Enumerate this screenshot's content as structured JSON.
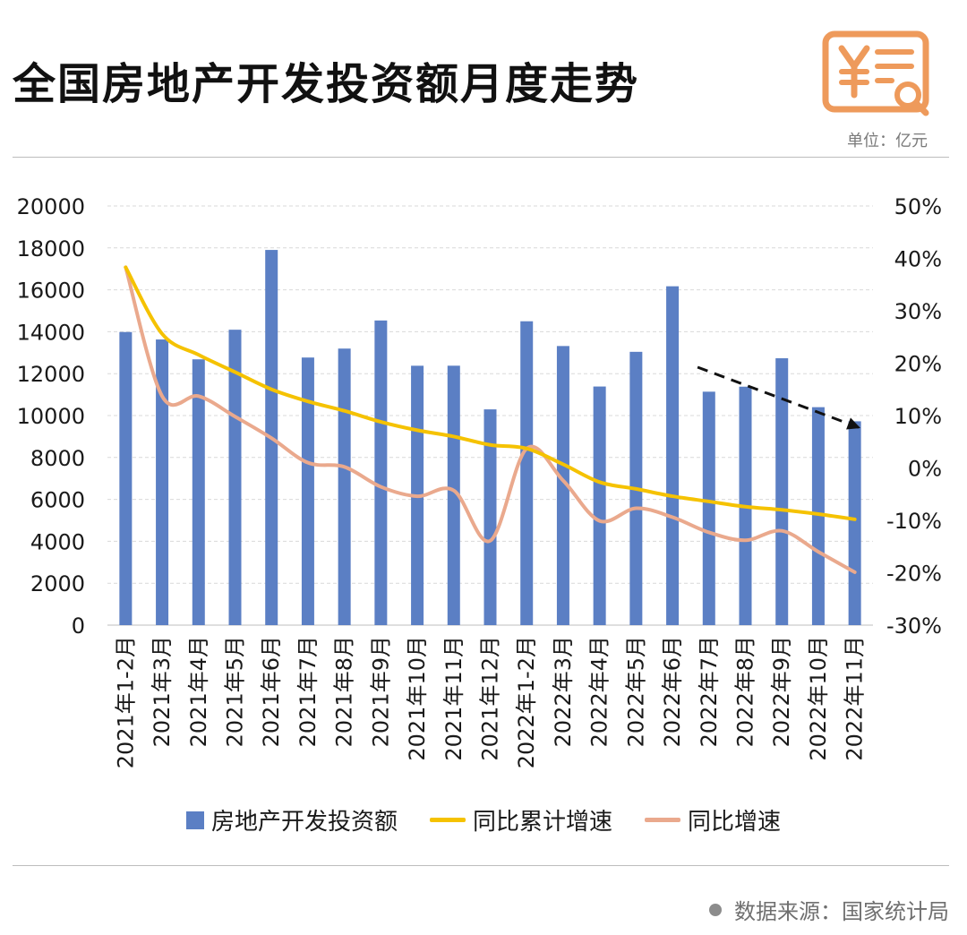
{
  "header": {
    "title": "全国房地产开发投资额月度走势",
    "unit": "单位：亿元"
  },
  "footer": {
    "source": "数据来源：国家统计局"
  },
  "colors": {
    "bar": "#5b7fc4",
    "cumulative": "#f5c200",
    "yoy": "#eaa98d",
    "logo": "#ee9a5b"
  },
  "icons": {
    "logo": "yuan-document-search-icon"
  },
  "chart_data": {
    "type": "bar",
    "categories": [
      "2021年1-2月",
      "2021年3月",
      "2021年4月",
      "2021年5月",
      "2021年6月",
      "2021年7月",
      "2021年8月",
      "2021年9月",
      "2021年10月",
      "2021年11月",
      "2021年12月",
      "2022年1-2月",
      "2022年3月",
      "2022年4月",
      "2022年5月",
      "2022年6月",
      "2022年7月",
      "2022年8月",
      "2022年9月",
      "2022年10月",
      "2022年11月"
    ],
    "series": [
      {
        "name": "房地产开发投资额",
        "type": "bar",
        "axis": "left",
        "values": [
          13986,
          13630,
          12683,
          14096,
          17903,
          12769,
          13196,
          14537,
          12377,
          12379,
          10295,
          14499,
          13318,
          11386,
          13041,
          16169,
          11139,
          11378,
          12734,
          10400,
          9726
        ]
      },
      {
        "name": "同比累计增速",
        "type": "line",
        "axis": "right",
        "values": [
          38.3,
          25.6,
          21.6,
          18.3,
          15.0,
          12.7,
          10.9,
          8.8,
          7.2,
          6.0,
          4.4,
          3.7,
          0.7,
          -2.7,
          -4.0,
          -5.4,
          -6.4,
          -7.4,
          -8.0,
          -8.8,
          -9.8
        ]
      },
      {
        "name": "同比增速",
        "type": "line",
        "axis": "right",
        "values": [
          38.3,
          13.7,
          13.7,
          9.8,
          5.7,
          1.0,
          0.2,
          -3.6,
          -5.4,
          -4.3,
          -13.9,
          3.7,
          -2.4,
          -10.1,
          -7.7,
          -9.4,
          -12.3,
          -13.8,
          -12.0,
          -16.0,
          -19.9
        ]
      }
    ],
    "y_left": {
      "min": 0,
      "max": 20000,
      "ticks": [
        "0",
        "2000",
        "4000",
        "6000",
        "8000",
        "10000",
        "12000",
        "14000",
        "16000",
        "18000",
        "20000"
      ]
    },
    "y_right": {
      "min": -30,
      "max": 50,
      "ticks": [
        "-30%",
        "-20%",
        "-10%",
        "0%",
        "10%",
        "20%",
        "30%",
        "40%",
        "50%"
      ]
    },
    "grid": true,
    "legend": "bottom",
    "annotation": "dashed downward trend arrow over 2022年7月–2022年11月"
  }
}
